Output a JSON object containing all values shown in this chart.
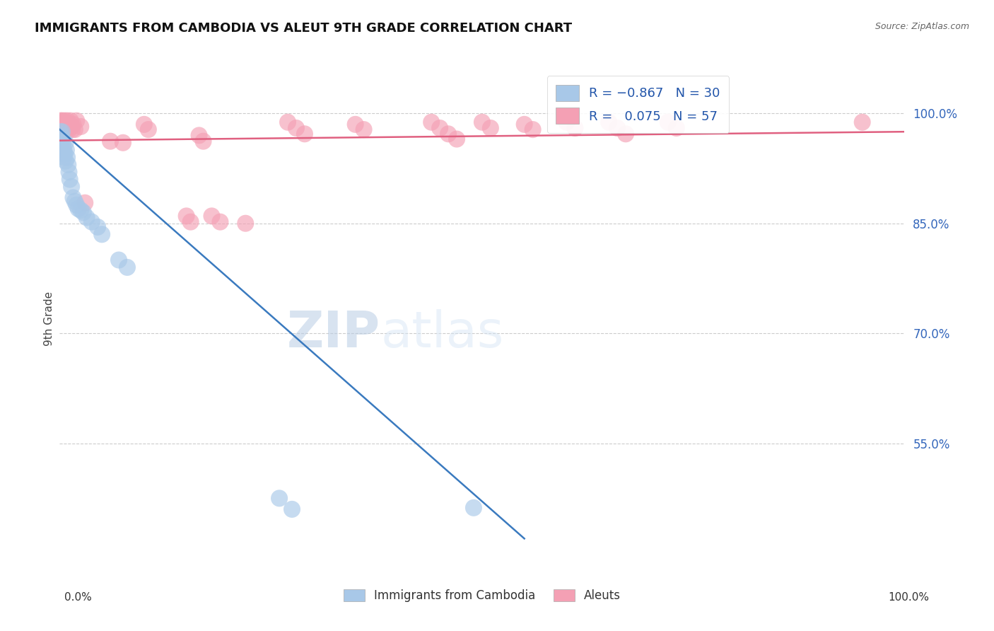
{
  "title": "IMMIGRANTS FROM CAMBODIA VS ALEUT 9TH GRADE CORRELATION CHART",
  "source": "Source: ZipAtlas.com",
  "ylabel": "9th Grade",
  "watermark_zip": "ZIP",
  "watermark_atlas": "atlas",
  "blue_label": "Immigrants from Cambodia",
  "pink_label": "Aleuts",
  "blue_R": -0.867,
  "blue_N": 30,
  "pink_R": 0.075,
  "pink_N": 57,
  "blue_color": "#a8c8e8",
  "pink_color": "#f4a0b4",
  "blue_line_color": "#3a7abf",
  "pink_line_color": "#e06080",
  "ytick_labels": [
    "55.0%",
    "70.0%",
    "85.0%",
    "100.0%"
  ],
  "ytick_values": [
    0.55,
    0.7,
    0.85,
    1.0
  ],
  "grid_color": "#cccccc",
  "xlim": [
    0.0,
    1.0
  ],
  "ylim": [
    0.38,
    1.06
  ],
  "blue_x": [
    0.001,
    0.002,
    0.003,
    0.003,
    0.004,
    0.005,
    0.005,
    0.006,
    0.007,
    0.007,
    0.008,
    0.009,
    0.01,
    0.011,
    0.012,
    0.014,
    0.016,
    0.018,
    0.02,
    0.022,
    0.025,
    0.028,
    0.032,
    0.038,
    0.045,
    0.05,
    0.07,
    0.08,
    0.26,
    0.275,
    0.49
  ],
  "blue_y": [
    0.975,
    0.97,
    0.965,
    0.975,
    0.96,
    0.95,
    0.94,
    0.945,
    0.935,
    0.96,
    0.95,
    0.94,
    0.93,
    0.92,
    0.91,
    0.9,
    0.885,
    0.88,
    0.875,
    0.87,
    0.868,
    0.865,
    0.858,
    0.852,
    0.845,
    0.835,
    0.8,
    0.79,
    0.475,
    0.46,
    0.462
  ],
  "pink_x": [
    0.001,
    0.002,
    0.002,
    0.003,
    0.003,
    0.004,
    0.004,
    0.005,
    0.005,
    0.006,
    0.006,
    0.007,
    0.007,
    0.008,
    0.008,
    0.009,
    0.01,
    0.011,
    0.012,
    0.013,
    0.014,
    0.015,
    0.016,
    0.018,
    0.02,
    0.025,
    0.03,
    0.06,
    0.075,
    0.1,
    0.105,
    0.15,
    0.155,
    0.165,
    0.17,
    0.18,
    0.19,
    0.22,
    0.27,
    0.28,
    0.29,
    0.35,
    0.36,
    0.44,
    0.45,
    0.46,
    0.47,
    0.5,
    0.51,
    0.55,
    0.56,
    0.6,
    0.61,
    0.65,
    0.66,
    0.67,
    0.72,
    0.73,
    0.95
  ],
  "pink_y": [
    0.99,
    0.985,
    0.978,
    0.99,
    0.982,
    0.988,
    0.98,
    0.985,
    0.978,
    0.99,
    0.982,
    0.988,
    0.98,
    0.985,
    0.978,
    0.99,
    0.982,
    0.978,
    0.985,
    0.99,
    0.982,
    0.978,
    0.985,
    0.978,
    0.99,
    0.982,
    0.878,
    0.962,
    0.96,
    0.985,
    0.978,
    0.86,
    0.852,
    0.97,
    0.962,
    0.86,
    0.852,
    0.85,
    0.988,
    0.98,
    0.972,
    0.985,
    0.978,
    0.988,
    0.98,
    0.972,
    0.965,
    0.988,
    0.98,
    0.985,
    0.978,
    0.988,
    0.98,
    0.988,
    0.98,
    0.972,
    0.988,
    0.98,
    0.988
  ]
}
